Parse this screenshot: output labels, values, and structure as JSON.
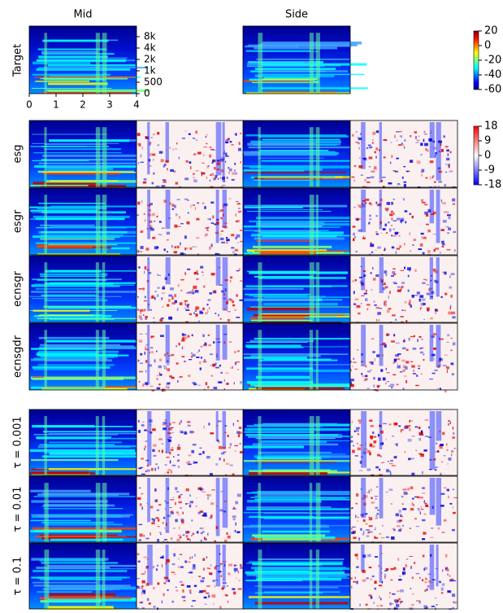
{
  "columns": [
    "Mid",
    "Side"
  ],
  "target": {
    "label": "Target",
    "yticks": [
      0,
      500,
      {
        "value": 1000,
        "label": "1k"
      },
      {
        "value": 2000,
        "label": "2k"
      },
      {
        "value": 4000,
        "label": "4k"
      },
      {
        "value": 8000,
        "label": "8k"
      }
    ],
    "xlim": [
      0,
      4
    ],
    "xticks": [
      0,
      1,
      2,
      3,
      4
    ]
  },
  "colorbar_level": {
    "lim": [
      -60,
      20
    ],
    "ticks": [
      20,
      0,
      -20,
      -40,
      -60
    ]
  },
  "colorbar_diff": {
    "lim": [
      -18,
      18
    ],
    "ticks": [
      18,
      9,
      0,
      -9,
      -18
    ]
  },
  "rows_a": [
    "esg",
    "esgr",
    "ecnsgr",
    "ecnsgdr"
  ],
  "rows_b": [
    "τ = 0.001",
    "τ = 0.01",
    "τ = 0.1"
  ]
}
